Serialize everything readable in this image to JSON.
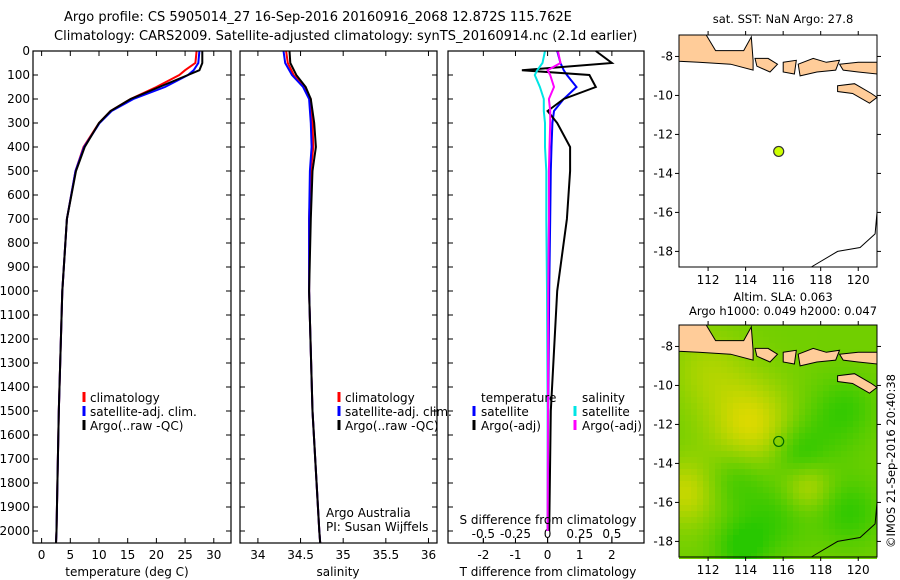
{
  "header": {
    "line1": "Argo profile: CS 5905014_27 16-Sep-2016 20160916_2068 12.872S 115.762E",
    "line2": "Climatology: CARS2009. Satellite-adjusted climatology: synTS_20160914.nc (2.1d earlier)"
  },
  "credit": "©IMOS 21-Sep-2016 20:40:38",
  "colors": {
    "climatology": "#ff0000",
    "satellite": "#0000ff",
    "argo": "#000000",
    "sal_satellite": "#00e5e5",
    "sal_argo": "#ff00ff",
    "land": "#ffcc99"
  },
  "chart_data": [
    {
      "type": "line",
      "name": "temperature-profile",
      "xlabel": "temperature (deg C)",
      "xlim": [
        -1.5,
        33
      ],
      "ylim": [
        2050,
        0
      ],
      "xticks": [
        0,
        5,
        10,
        15,
        20,
        25,
        30
      ],
      "yticks": [
        0,
        100,
        200,
        300,
        400,
        500,
        600,
        700,
        800,
        900,
        1000,
        1100,
        1200,
        1300,
        1400,
        1500,
        1600,
        1700,
        1800,
        1900,
        2000
      ],
      "depth": [
        0,
        50,
        80,
        100,
        150,
        200,
        250,
        300,
        400,
        500,
        700,
        1000,
        1500,
        2000,
        2050
      ],
      "series": [
        {
          "name": "climatology",
          "color": "#ff0000",
          "values": [
            27.0,
            26.8,
            25.0,
            24.0,
            20.0,
            15.5,
            12.0,
            10.0,
            7.3,
            5.9,
            4.4,
            3.6,
            3.0,
            2.6,
            2.5
          ]
        },
        {
          "name": "satellite-adj. clim.",
          "color": "#0000ff",
          "values": [
            27.5,
            27.3,
            26.5,
            25.5,
            21.5,
            16.0,
            12.2,
            10.1,
            7.4,
            5.9,
            4.4,
            3.6,
            3.0,
            2.6,
            2.5
          ]
        },
        {
          "name": "Argo(..raw -QC)",
          "color": "#000000",
          "values": [
            28.0,
            28.0,
            27.5,
            25.5,
            20.5,
            15.5,
            12.0,
            10.0,
            7.5,
            6.0,
            4.4,
            3.6,
            3.0,
            2.6,
            2.5
          ]
        }
      ],
      "legend": [
        "climatology",
        "satellite-adj. clim.",
        "Argo(..raw -QC)"
      ]
    },
    {
      "type": "line",
      "name": "salinity-profile",
      "xlabel": "salinity",
      "xlim": [
        33.79,
        36.1
      ],
      "ylim": [
        2050,
        0
      ],
      "xticks": [
        34,
        34.5,
        35,
        35.5,
        36
      ],
      "depth": [
        0,
        50,
        100,
        150,
        200,
        300,
        400,
        500,
        700,
        1000,
        1500,
        2000,
        2050
      ],
      "series": [
        {
          "name": "climatology",
          "color": "#ff0000",
          "values": [
            34.33,
            34.35,
            34.42,
            34.54,
            34.62,
            34.64,
            34.65,
            34.62,
            34.6,
            34.6,
            34.64,
            34.72,
            34.73
          ]
        },
        {
          "name": "satellite-adj. clim.",
          "color": "#0000ff",
          "values": [
            34.3,
            34.32,
            34.4,
            34.53,
            34.6,
            34.62,
            34.63,
            34.61,
            34.6,
            34.6,
            34.64,
            34.72,
            34.73
          ]
        },
        {
          "name": "Argo(..raw -QC)",
          "color": "#000000",
          "values": [
            34.37,
            34.38,
            34.45,
            34.56,
            34.62,
            34.66,
            34.68,
            34.64,
            34.62,
            34.6,
            34.64,
            34.72,
            34.73
          ]
        }
      ],
      "legend": [
        "climatology",
        "satellite-adj. clim.",
        "Argo(..raw -QC)"
      ],
      "annotation": [
        "Argo Australia",
        "PI: Susan Wijffels"
      ]
    },
    {
      "type": "line",
      "name": "difference-profile",
      "xlabel": "T difference from climatology",
      "xlabel_top": "S difference from climatology",
      "xlim": [
        -3.1,
        3.0
      ],
      "xticks": [
        -2,
        -1,
        0,
        1,
        2
      ],
      "s_xticks": [
        -0.5,
        -0.25,
        0,
        0.25,
        0.5
      ],
      "s_xtick_labels": [
        "-0.5",
        "-0.25",
        "0",
        "0.25",
        "0.5"
      ],
      "s_to_t_scale": 4,
      "ylim": [
        2050,
        0
      ],
      "depth": [
        0,
        50,
        80,
        100,
        150,
        200,
        250,
        300,
        400,
        500,
        700,
        1000,
        1500,
        2000
      ],
      "series": [
        {
          "name": "temperature satellite",
          "color": "#0000ff",
          "values": [
            0.3,
            0.4,
            0.5,
            0.6,
            0.9,
            0.5,
            0.2,
            0.15,
            0.12,
            0.1,
            0.08,
            0.05,
            0.02,
            0.0
          ]
        },
        {
          "name": "temperature Argo(-adj)",
          "color": "#000000",
          "values": [
            1.5,
            2.0,
            -0.8,
            1.3,
            1.5,
            0.5,
            0.0,
            0.3,
            0.7,
            0.7,
            0.6,
            0.3,
            0.1,
            0.05
          ]
        },
        {
          "name": "salinity satellite",
          "color": "#00e5e5",
          "values": [
            -0.02,
            -0.04,
            -0.08,
            -0.1,
            -0.06,
            -0.03,
            -0.03,
            -0.02,
            -0.02,
            -0.01,
            -0.01,
            -0.005,
            0.0,
            0.0
          ]
        },
        {
          "name": "salinity Argo(-adj)",
          "color": "#ff00ff",
          "values": [
            0.08,
            0.1,
            0.0,
            0.02,
            0.05,
            0.01,
            0.02,
            0.02,
            0.015,
            0.01,
            0.01,
            0.005,
            0.003,
            0.0
          ]
        }
      ],
      "legend": {
        "temperature_title": "temperature",
        "salinity_title": "salinity",
        "satellite": "satellite",
        "argo": "Argo(-adj)"
      }
    },
    {
      "type": "map",
      "name": "sst-map",
      "title": "sat. SST: NaN Argo: 27.8",
      "lon_range": [
        110.45,
        121.0
      ],
      "lat_range": [
        -18.8,
        -6.9
      ],
      "lon_ticks": [
        112,
        114,
        116,
        118,
        120
      ],
      "lat_ticks": [
        -8,
        -10,
        -12,
        -14,
        -16,
        -18
      ],
      "argo_position": {
        "lon": 115.762,
        "lat": -12.872
      },
      "marker_color": "#ccff00"
    },
    {
      "type": "heatmap",
      "name": "sla-map",
      "title1": "Altim. SLA: 0.063",
      "title2": "Argo h1000: 0.049 h2000: 0.047",
      "lon_range": [
        110.45,
        121.0
      ],
      "lat_range": [
        -18.8,
        -6.9
      ],
      "lon_ticks": [
        112,
        114,
        116,
        118,
        120
      ],
      "lat_ticks": [
        -8,
        -10,
        -12,
        -14,
        -16,
        -18
      ],
      "argo_position": {
        "lon": 115.762,
        "lat": -12.872
      }
    }
  ],
  "land": [
    [
      [
        110.45,
        -6.9
      ],
      [
        111.9,
        -6.9
      ],
      [
        112.4,
        -7.7
      ],
      [
        113.9,
        -7.7
      ],
      [
        114.3,
        -7.0
      ],
      [
        114.4,
        -8.2
      ],
      [
        114.4,
        -8.7
      ],
      [
        113.2,
        -8.4
      ],
      [
        111.5,
        -8.3
      ],
      [
        110.45,
        -8.25
      ]
    ],
    [
      [
        114.5,
        -8.1
      ],
      [
        115.2,
        -8.1
      ],
      [
        115.7,
        -8.4
      ],
      [
        115.3,
        -8.8
      ],
      [
        114.6,
        -8.5
      ]
    ],
    [
      [
        116.0,
        -8.3
      ],
      [
        116.7,
        -8.2
      ],
      [
        116.6,
        -8.9
      ],
      [
        116.0,
        -8.8
      ]
    ],
    [
      [
        116.8,
        -8.4
      ],
      [
        117.6,
        -8.1
      ],
      [
        118.3,
        -8.3
      ],
      [
        119.0,
        -8.2
      ],
      [
        118.8,
        -8.7
      ],
      [
        117.8,
        -8.8
      ],
      [
        116.9,
        -9.0
      ]
    ],
    [
      [
        119.0,
        -8.4
      ],
      [
        120.0,
        -8.3
      ],
      [
        121.0,
        -8.3
      ],
      [
        121.0,
        -8.9
      ],
      [
        120.0,
        -8.8
      ],
      [
        119.2,
        -8.7
      ]
    ],
    [
      [
        118.9,
        -9.5
      ],
      [
        119.8,
        -9.4
      ],
      [
        120.7,
        -9.9
      ],
      [
        121.0,
        -10.1
      ],
      [
        120.6,
        -10.4
      ],
      [
        119.7,
        -9.9
      ],
      [
        118.9,
        -9.8
      ]
    ]
  ],
  "coast_australia": [
    [
      121.0,
      -16.0
    ],
    [
      120.9,
      -17.1
    ],
    [
      120.1,
      -17.8
    ],
    [
      118.9,
      -18.0
    ],
    [
      117.5,
      -18.8
    ]
  ]
}
